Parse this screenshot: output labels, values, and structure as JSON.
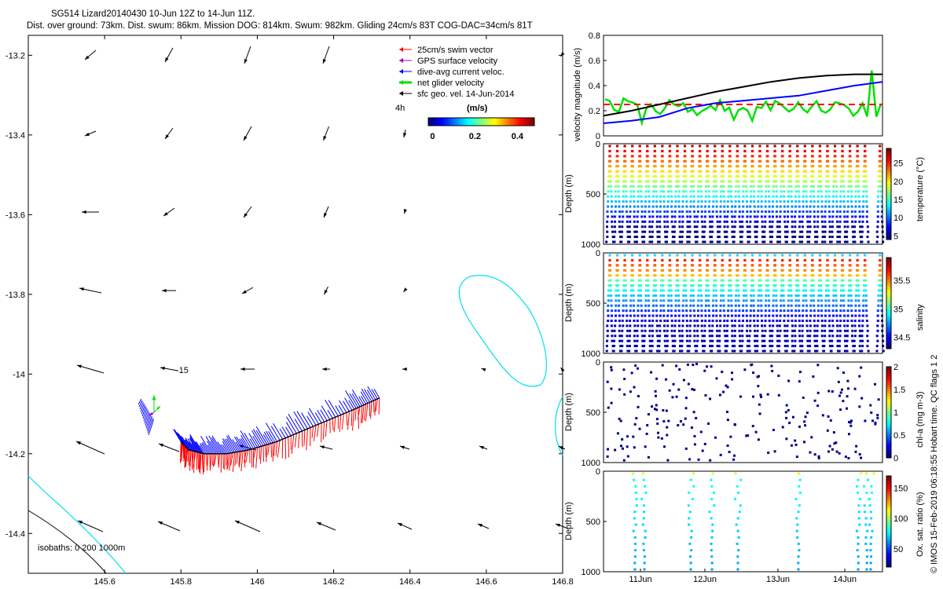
{
  "header": {
    "title_line1": "SG514 Lizard20140430 10-Jun 12Z to 14-Jun 11Z.",
    "title_line2": "Dist. over ground: 73km. Dist. swum: 86km. Mission DOG: 814km. Swum: 982km. Gliding 24cm/s 83T COG-DAC=34cm/s 81T"
  },
  "side_credit": "© IMOS 15-Feb-2019 06:18:55 Hobart time. QC flags 1  2",
  "colors": {
    "swim": "#ff0000",
    "gps": "#a000c0",
    "dac": "#0000ff",
    "net": "#00e000",
    "sfc": "#000000",
    "isobath": "#00e0e8",
    "dog": "#000000"
  },
  "chart_data": [
    {
      "type": "scatter",
      "name": "map",
      "xlim": [
        145.4,
        146.8
      ],
      "ylim": [
        -14.5,
        -13.15
      ],
      "xticks": [
        "145.6",
        "145.8",
        "146",
        "146.2",
        "146.4",
        "146.6",
        "146.8"
      ],
      "xtick_values": [
        145.6,
        145.8,
        146.0,
        146.2,
        146.4,
        146.6,
        146.8
      ],
      "yticks": [
        "-13.2",
        "-13.4",
        "-13.6",
        "-13.8",
        "-14",
        "-14.2",
        "-14.4"
      ],
      "ytick_values": [
        -13.2,
        -13.4,
        -13.6,
        -13.8,
        -14.0,
        -14.2,
        -14.4
      ],
      "legend": [
        {
          "label": "25cm/s swim vector",
          "color": "#ff0000",
          "key": "swim"
        },
        {
          "label": "GPS surface velocity",
          "color": "#a000c0",
          "key": "gps"
        },
        {
          "label": "dive-avg current veloc.",
          "color": "#0000ff",
          "key": "dac"
        },
        {
          "label": "net glider velocity",
          "color": "#00e000",
          "key": "net"
        },
        {
          "label": "sfc geo. vel. 14-Jun-2014",
          "color": "#000000",
          "key": "sfc"
        }
      ],
      "colorbar_label": "(m/s)",
      "colorbar_title": "4h",
      "colorbar_ticks": [
        "0",
        "0.2",
        "0.4"
      ],
      "isobath_label": "isobaths: 0   200  1000m",
      "contour_label": "-15",
      "track": {
        "lon": [
          146.32,
          146.25,
          146.15,
          146.05,
          145.98,
          145.92,
          145.86,
          145.82,
          145.8
        ],
        "lat": [
          -14.06,
          -14.09,
          -14.13,
          -14.17,
          -14.19,
          -14.2,
          -14.2,
          -14.19,
          -14.17
        ]
      }
    },
    {
      "type": "line",
      "name": "velocity",
      "ylabel": "velocity magnitude (m/s)",
      "ylim": [
        0,
        0.8
      ],
      "yticks": [
        "0",
        "0.2",
        "0.4",
        "0.6",
        "0.8"
      ],
      "series": [
        {
          "name": "black",
          "color": "#000000",
          "values": [
            0.16,
            0.2,
            0.25,
            0.3,
            0.35,
            0.39,
            0.43,
            0.46,
            0.48,
            0.49,
            0.49
          ]
        },
        {
          "name": "blue",
          "color": "#0000ff",
          "values": [
            0.1,
            0.12,
            0.15,
            0.22,
            0.26,
            0.28,
            0.3,
            0.32,
            0.36,
            0.4,
            0.43
          ]
        },
        {
          "name": "red-dashed",
          "color": "#ff0000",
          "values": [
            0.25,
            0.25
          ]
        }
      ]
    },
    {
      "type": "scatter",
      "name": "temperature",
      "ylabel": "Depth (m)",
      "clabel": "temperature (°C)",
      "ylim": [
        1000,
        0
      ],
      "yticks": [
        "0",
        "500",
        "1000"
      ],
      "cticks": [
        "25",
        "20",
        "15",
        "10",
        "5"
      ],
      "crange": [
        4,
        29
      ]
    },
    {
      "type": "scatter",
      "name": "salinity",
      "ylabel": "Depth (m)",
      "clabel": "salinity",
      "ylim": [
        1000,
        0
      ],
      "yticks": [
        "0",
        "500",
        "1000"
      ],
      "cticks": [
        "35.5",
        "35",
        "34.5"
      ],
      "crange": [
        34.3,
        35.9
      ]
    },
    {
      "type": "scatter",
      "name": "chla",
      "ylabel": "Depth (m)",
      "clabel": "chl-a (mg m-3)",
      "ylim": [
        1000,
        0
      ],
      "yticks": [
        "0",
        "500",
        "1000"
      ],
      "cticks": [
        "2",
        "1.5",
        "1",
        "0.5",
        "0"
      ],
      "crange": [
        0,
        2
      ]
    },
    {
      "type": "scatter",
      "name": "oxygen",
      "ylabel": "Depth (m)",
      "clabel": "Ox. sat. ratio (%)",
      "ylim": [
        1000,
        0
      ],
      "yticks": [
        "0",
        "500",
        "1000"
      ],
      "cticks": [
        "150",
        "100",
        "50"
      ],
      "crange": [
        20,
        170
      ],
      "xticks": [
        "11Jun",
        "12Jun",
        "13Jun",
        "14Jun"
      ]
    }
  ]
}
